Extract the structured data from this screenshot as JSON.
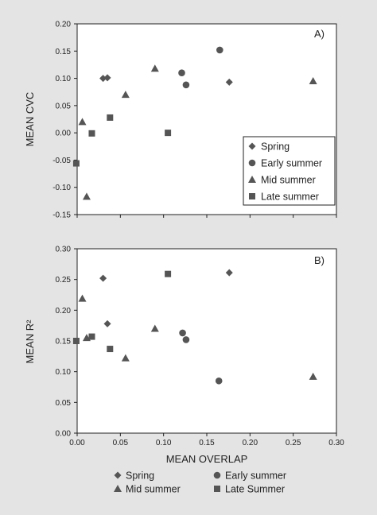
{
  "chart_data": [
    {
      "type": "scatter",
      "panel_label": "A)",
      "ylabel": "MEAN CVC",
      "xlabel": "",
      "xlim": [
        0,
        0.3
      ],
      "ylim": [
        -0.15,
        0.2
      ],
      "x_ticks": [
        "0.00",
        "0.05",
        "0.10",
        "0.15",
        "0.20",
        "0.25",
        "0.30"
      ],
      "y_ticks": [
        "-0.15",
        "-0.10",
        "-0.05",
        "0.00",
        "0.05",
        "0.10",
        "0.15",
        "0.20"
      ],
      "legend_position": "bottom-right",
      "series": [
        {
          "name": "Spring",
          "marker": "diamond",
          "points": [
            [
              0.03,
              0.1
            ],
            [
              0.035,
              0.101
            ],
            [
              0.176,
              0.093
            ]
          ]
        },
        {
          "name": "Early summer",
          "marker": "circle",
          "points": [
            [
              0.121,
              0.11
            ],
            [
              0.126,
              0.088
            ],
            [
              0.165,
              0.152
            ]
          ]
        },
        {
          "name": "Mid summer",
          "marker": "triangle",
          "points": [
            [
              0.006,
              0.02
            ],
            [
              0.011,
              -0.117
            ],
            [
              0.056,
              0.07
            ],
            [
              0.09,
              0.118
            ],
            [
              0.273,
              0.095
            ]
          ]
        },
        {
          "name": "Late summer",
          "marker": "square",
          "points": [
            [
              -0.001,
              -0.056
            ],
            [
              0.017,
              -0.001
            ],
            [
              0.038,
              0.028
            ],
            [
              0.105,
              0.0
            ]
          ]
        }
      ]
    },
    {
      "type": "scatter",
      "panel_label": "B)",
      "ylabel": "MEAN R²",
      "xlabel": "MEAN OVERLAP",
      "xlim": [
        0,
        0.3
      ],
      "ylim": [
        0,
        0.3
      ],
      "x_ticks": [
        "0.00",
        "0.05",
        "0.10",
        "0.15",
        "0.20",
        "0.25",
        "0.30"
      ],
      "y_ticks": [
        "0.00",
        "0.05",
        "0.10",
        "0.15",
        "0.20",
        "0.25",
        "0.30"
      ],
      "legend_position": "below",
      "series": [
        {
          "name": "Spring",
          "marker": "diamond",
          "points": [
            [
              0.03,
              0.252
            ],
            [
              0.035,
              0.178
            ],
            [
              0.176,
              0.261
            ]
          ]
        },
        {
          "name": "Early summer",
          "marker": "circle",
          "points": [
            [
              0.122,
              0.163
            ],
            [
              0.126,
              0.152
            ],
            [
              0.164,
              0.085
            ]
          ]
        },
        {
          "name": "Mid summer",
          "marker": "triangle",
          "points": [
            [
              0.006,
              0.219
            ],
            [
              0.011,
              0.155
            ],
            [
              0.056,
              0.122
            ],
            [
              0.09,
              0.17
            ],
            [
              0.273,
              0.092
            ]
          ]
        },
        {
          "name": "Late Summer",
          "marker": "square",
          "points": [
            [
              -0.001,
              0.15
            ],
            [
              0.017,
              0.157
            ],
            [
              0.038,
              0.137
            ],
            [
              0.105,
              0.259
            ]
          ]
        }
      ]
    }
  ],
  "colors": {
    "background": "#e4e4e4",
    "panel": "#ffffff",
    "marker": "#555555",
    "text": "#222222"
  }
}
